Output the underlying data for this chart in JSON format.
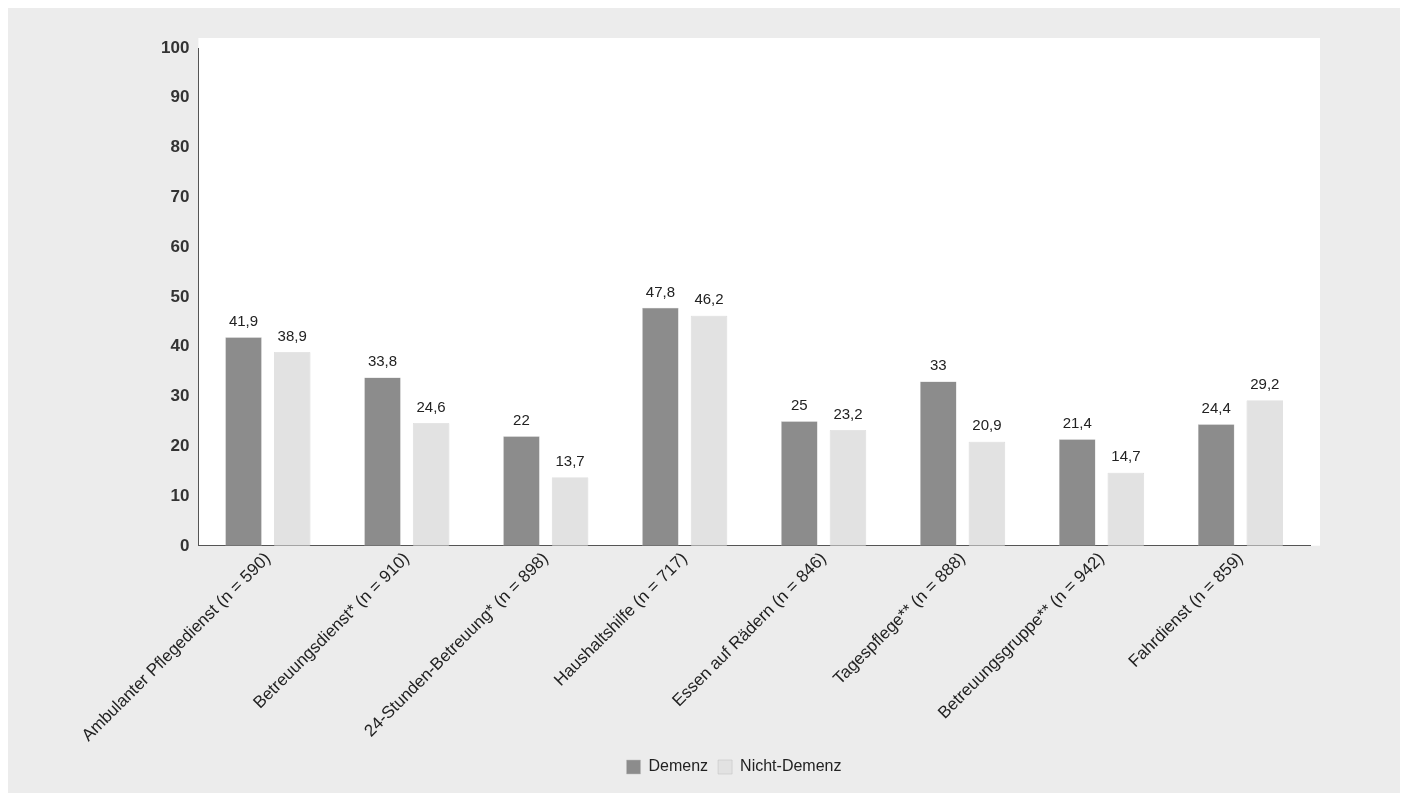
{
  "chart_data": {
    "type": "bar",
    "categories": [
      "Ambulanter Pflegedienst (n = 590)",
      "Betreuungsdienst* (n = 910)",
      "24-Stunden-Betreuung* (n = 898)",
      "Haushaltshilfe (n = 717)",
      "Essen auf Rädern (n = 846)",
      "Tagespflege** (n = 888)",
      "Betreuungsgruppe** (n = 942)",
      "Fahrdienst (n = 859)"
    ],
    "series": [
      {
        "name": "Demenz",
        "color": "#8c8c8c",
        "values": [
          41.9,
          33.8,
          22,
          47.8,
          25,
          33,
          21.4,
          24.4
        ],
        "value_labels": [
          "41,9",
          "33,8",
          "22",
          "47,8",
          "25",
          "33",
          "21,4",
          "24,4"
        ]
      },
      {
        "name": "Nicht-Demenz",
        "color": "#e2e2e2",
        "values": [
          38.9,
          24.6,
          13.7,
          46.2,
          23.2,
          20.9,
          14.7,
          29.2
        ],
        "value_labels": [
          "38,9",
          "24,6",
          "13,7",
          "46,2",
          "23,2",
          "20,9",
          "14,7",
          "29,2"
        ]
      }
    ],
    "ylim": [
      0,
      100
    ],
    "yticks": [
      0,
      10,
      20,
      30,
      40,
      50,
      60,
      70,
      80,
      90,
      100
    ],
    "grid": false,
    "legend": "bottom"
  }
}
